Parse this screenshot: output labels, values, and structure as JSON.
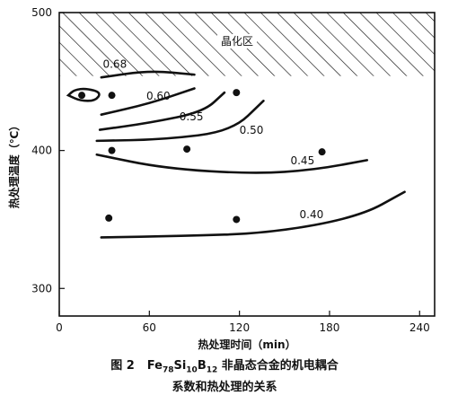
{
  "chart_data": {
    "type": "line",
    "title": "",
    "xlabel": "热处理时间（min）",
    "ylabel": "热处理温度（℃）",
    "xlim": [
      0,
      250
    ],
    "ylim": [
      280,
      500
    ],
    "xticks": [
      "0",
      "60",
      "120",
      "180",
      "240"
    ],
    "yticks": [
      "300",
      "400",
      "500"
    ],
    "region_label": "晶化区",
    "region_ylim": [
      454,
      500
    ],
    "grid": false,
    "points": [
      {
        "x": 15,
        "y": 440
      },
      {
        "x": 35,
        "y": 440
      },
      {
        "x": 118,
        "y": 442
      },
      {
        "x": 35,
        "y": 400
      },
      {
        "x": 85,
        "y": 401
      },
      {
        "x": 175,
        "y": 399
      },
      {
        "x": 33,
        "y": 351
      },
      {
        "x": 118,
        "y": 350
      }
    ],
    "series": [
      {
        "name": "0.68",
        "x": [
          6,
          10,
          18,
          28,
          24,
          14,
          6
        ],
        "y": [
          440,
          444,
          445,
          442,
          436,
          436,
          440
        ],
        "closed": true
      },
      {
        "name": "0.68",
        "x": [
          28,
          60,
          90
        ],
        "y": [
          453,
          458,
          455
        ]
      },
      {
        "name": "0.60",
        "x": [
          28,
          60,
          90
        ],
        "y": [
          426,
          434,
          445
        ]
      },
      {
        "name": "0.55",
        "x": [
          27,
          60,
          96,
          110
        ],
        "y": [
          415,
          420,
          428,
          442
        ]
      },
      {
        "name": "0.50",
        "x": [
          25,
          70,
          115,
          136
        ],
        "y": [
          407,
          408,
          414,
          436
        ]
      },
      {
        "name": "0.45",
        "x": [
          25,
          70,
          130,
          170,
          205
        ],
        "y": [
          397,
          387,
          383,
          386,
          393
        ]
      },
      {
        "name": "0.40",
        "x": [
          28,
          80,
          140,
          200,
          230
        ],
        "y": [
          337,
          338,
          340,
          352,
          370
        ]
      }
    ],
    "labels": [
      {
        "text": "0.68",
        "x": 29,
        "y": 460
      },
      {
        "text": "0.60",
        "x": 58,
        "y": 437
      },
      {
        "text": "0.55",
        "x": 80,
        "y": 422
      },
      {
        "text": "0.50",
        "x": 120,
        "y": 412
      },
      {
        "text": "0.45",
        "x": 154,
        "y": 390
      },
      {
        "text": "0.40",
        "x": 160,
        "y": 351
      }
    ]
  },
  "caption": {
    "prefix": "图 2",
    "fe": "Fe",
    "fe_sub": "78",
    "si": "Si",
    "si_sub": "10",
    "b": "B",
    "b_sub": "12",
    "rest": " 非晶态合金的机电耦合",
    "line2": "系数和热处理的关系"
  }
}
